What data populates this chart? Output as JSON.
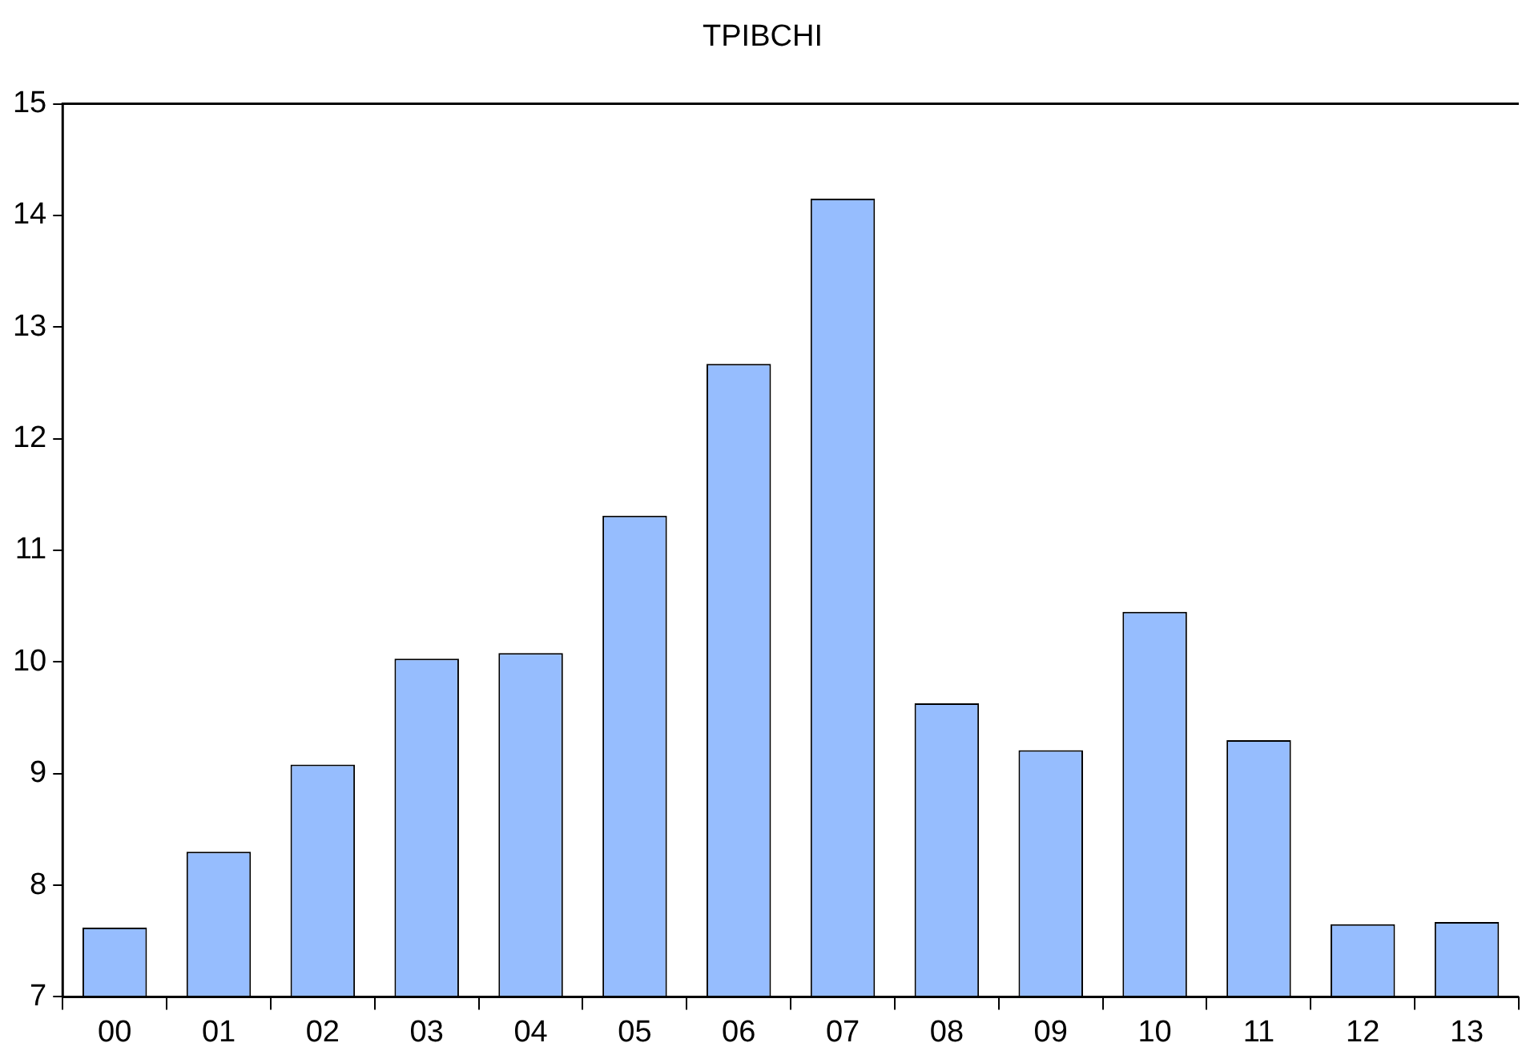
{
  "chart_data": {
    "type": "bar",
    "title": "TPIBCHI",
    "categories": [
      "00",
      "01",
      "02",
      "03",
      "04",
      "05",
      "06",
      "07",
      "08",
      "09",
      "10",
      "11",
      "12",
      "13"
    ],
    "values": [
      7.62,
      8.3,
      9.08,
      10.03,
      10.08,
      11.31,
      12.67,
      14.15,
      9.63,
      9.21,
      10.45,
      9.3,
      7.65,
      7.67
    ],
    "color": "#96bdfe",
    "ylim": [
      7,
      15
    ],
    "yticks": [
      7,
      8,
      9,
      10,
      11,
      12,
      13,
      14,
      15
    ],
    "grid": false,
    "legend": false
  }
}
